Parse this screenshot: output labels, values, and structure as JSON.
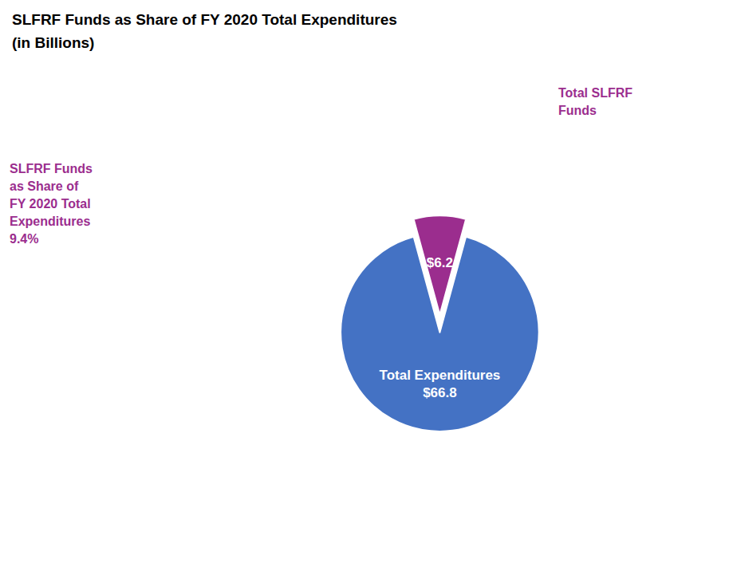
{
  "chart_data": {
    "type": "pie",
    "title": "SLFRF Funds as Share of FY 2020 Total Expenditures",
    "subtitle": "(in Billions)",
    "values": [
      6.2,
      66.8
    ],
    "value_labels": [
      "$6.2",
      "Total Expenditures\n$66.8"
    ],
    "colors": [
      "#9B2D8E",
      "#4472C4"
    ],
    "data_labels": true,
    "annotations": [
      {
        "text": "SLFRF Funds\nas Share of\nFY 2020 Total\nExpenditures\n9.4%",
        "color": "#9B2D8E"
      },
      {
        "text": "Total SLFRF\nFunds",
        "color": "#9B2D8E"
      }
    ]
  }
}
